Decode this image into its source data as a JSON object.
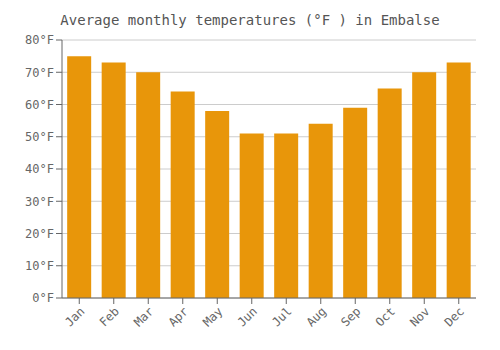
{
  "chart_data": {
    "type": "bar",
    "title": "Average monthly temperatures (°F ) in Embalse",
    "categories": [
      "Jan",
      "Feb",
      "Mar",
      "Apr",
      "May",
      "Jun",
      "Jul",
      "Aug",
      "Sep",
      "Oct",
      "Nov",
      "Dec"
    ],
    "values": [
      75,
      73,
      70,
      64,
      58,
      51,
      51,
      54,
      59,
      65,
      70,
      73
    ],
    "color": "#E8960A",
    "ylim": [
      0,
      80
    ],
    "yticks": [
      {
        "value": 0,
        "label": "0°F"
      },
      {
        "value": 10,
        "label": "10°F"
      },
      {
        "value": 20,
        "label": "20°F"
      },
      {
        "value": 30,
        "label": "30°F"
      },
      {
        "value": 40,
        "label": "40°F"
      },
      {
        "value": 50,
        "label": "50°F"
      },
      {
        "value": 60,
        "label": "60°F"
      },
      {
        "value": 70,
        "label": "70°F"
      },
      {
        "value": 80,
        "label": "80°F"
      }
    ],
    "grid": true
  }
}
